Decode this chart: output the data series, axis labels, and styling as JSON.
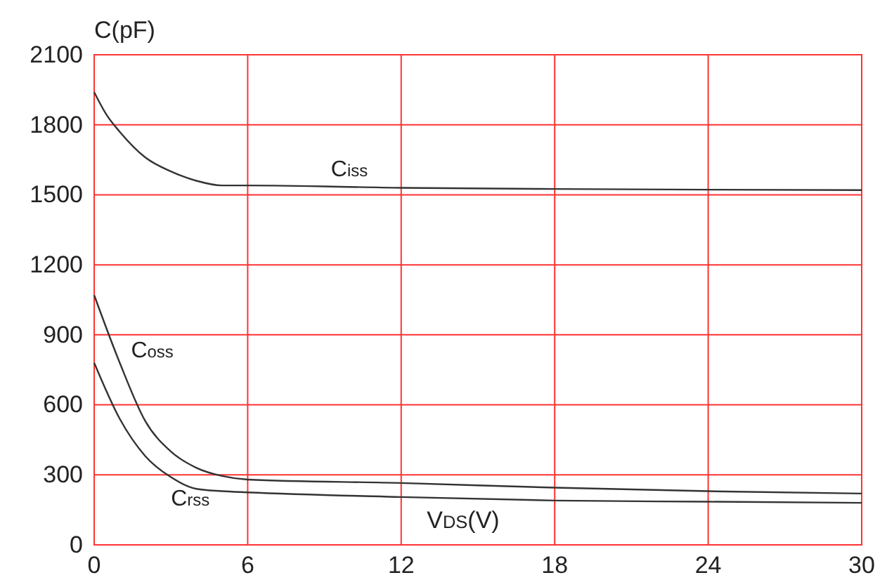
{
  "chart_data": {
    "type": "line",
    "xlabel": "V$_{DS}$(V)",
    "ylabel": "C(pF)",
    "xlim": [
      0,
      30
    ],
    "xticks": [
      0,
      6,
      12,
      18,
      24,
      30
    ],
    "ylim": [
      0,
      2100
    ],
    "yticks": [
      0,
      300,
      600,
      900,
      1200,
      1500,
      1800,
      2100
    ],
    "grid": true,
    "legend": false,
    "marker": "none",
    "line_style": "solid",
    "series": [
      {
        "name": "C$_{iss}$",
        "color": "#333333",
        "x": [
          0,
          0.5,
          1,
          2,
          3,
          4,
          5,
          6,
          12,
          18,
          24,
          30
        ],
        "values": [
          1940,
          1840,
          1770,
          1660,
          1600,
          1560,
          1540,
          1540,
          1530,
          1525,
          1522,
          1520
        ]
      },
      {
        "name": "C$_{oss}$",
        "color": "#333333",
        "x": [
          0,
          1,
          2,
          3,
          4,
          5,
          6,
          12,
          18,
          24,
          30
        ],
        "values": [
          1070,
          780,
          530,
          400,
          330,
          295,
          280,
          265,
          245,
          230,
          220
        ]
      },
      {
        "name": "C$_{rss}$",
        "color": "#333333",
        "x": [
          0,
          1,
          2,
          3,
          4,
          5,
          6,
          12,
          18,
          24,
          30
        ],
        "values": [
          780,
          540,
          380,
          290,
          240,
          230,
          225,
          205,
          190,
          185,
          180
        ]
      }
    ]
  }
}
